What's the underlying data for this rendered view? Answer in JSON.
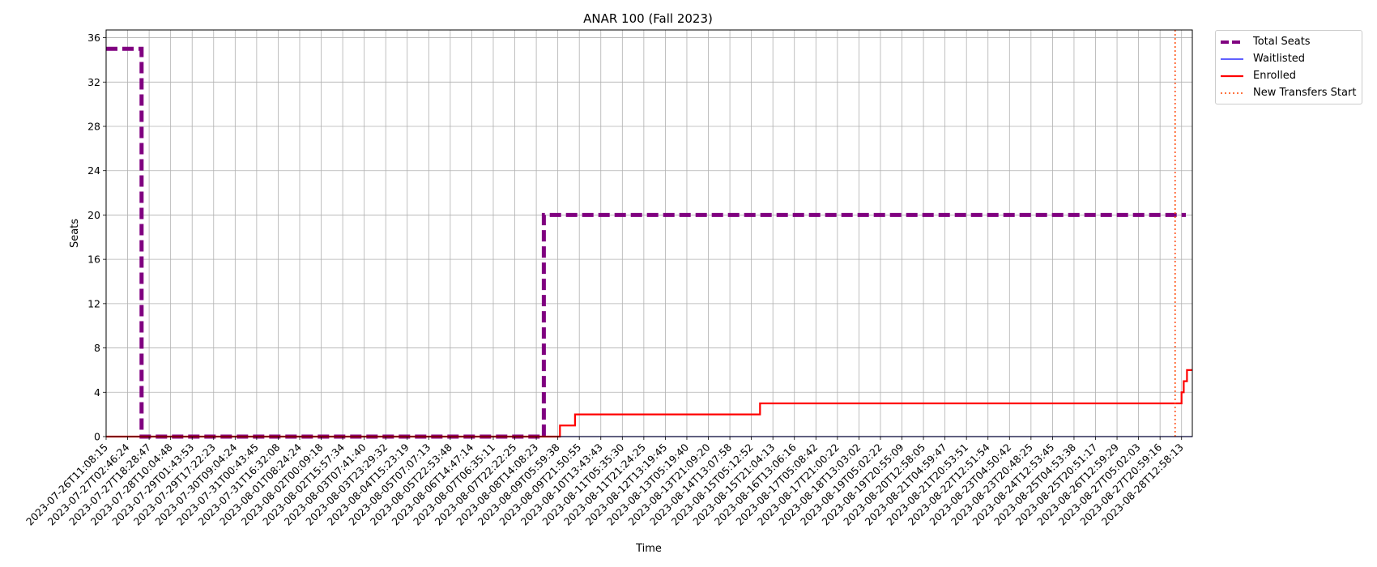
{
  "chart_data": {
    "type": "line",
    "title": "ANAR 100 (Fall 2023)",
    "xlabel": "Time",
    "ylabel": "Seats",
    "ylim": [
      0,
      36.7
    ],
    "yticks": [
      0,
      4,
      8,
      12,
      16,
      20,
      24,
      28,
      32,
      36
    ],
    "grid": true,
    "legend_placement": "outside upper right",
    "x_tick_labels": [
      "2023-07-26T11:08:15",
      "2023-07-27T02:46:24",
      "2023-07-27T18:28:47",
      "2023-07-28T10:04:48",
      "2023-07-29T01:43:53",
      "2023-07-29T17:22:23",
      "2023-07-30T09:04:24",
      "2023-07-31T00:43:45",
      "2023-07-31T16:32:08",
      "2023-08-01T08:24:24",
      "2023-08-02T00:09:18",
      "2023-08-02T15:57:34",
      "2023-08-03T07:41:40",
      "2023-08-03T23:29:32",
      "2023-08-04T15:23:19",
      "2023-08-05T07:07:13",
      "2023-08-05T22:53:48",
      "2023-08-06T14:47:14",
      "2023-08-07T06:35:11",
      "2023-08-07T22:22:25",
      "2023-08-08T14:08:23",
      "2023-08-09T05:59:38",
      "2023-08-09T21:50:55",
      "2023-08-10T13:43:43",
      "2023-08-11T05:35:30",
      "2023-08-11T21:24:25",
      "2023-08-12T13:19:45",
      "2023-08-13T05:19:40",
      "2023-08-13T21:09:20",
      "2023-08-14T13:07:58",
      "2023-08-15T05:12:52",
      "2023-08-15T21:04:13",
      "2023-08-16T13:06:16",
      "2023-08-17T05:08:42",
      "2023-08-17T21:00:22",
      "2023-08-18T13:03:02",
      "2023-08-19T05:02:22",
      "2023-08-19T20:55:09",
      "2023-08-20T12:58:05",
      "2023-08-21T04:59:47",
      "2023-08-21T20:53:51",
      "2023-08-22T12:51:54",
      "2023-08-23T04:50:42",
      "2023-08-23T20:48:25",
      "2023-08-24T12:53:45",
      "2023-08-25T04:53:38",
      "2023-08-25T20:51:17",
      "2023-08-26T12:59:29",
      "2023-08-27T05:02:03",
      "2023-08-27T20:59:16",
      "2023-08-28T12:58:13"
    ],
    "x_range_index": [
      0,
      50.5
    ],
    "series": [
      {
        "name": "Total Seats",
        "color": "#800080",
        "style": "dashed",
        "points": [
          [
            0,
            35
          ],
          [
            1.65,
            35
          ],
          [
            1.65,
            0
          ],
          [
            20.35,
            0
          ],
          [
            20.35,
            20
          ],
          [
            50.2,
            20
          ]
        ]
      },
      {
        "name": "Waitlisted",
        "color": "#0000ff",
        "style": "solid",
        "points": [
          [
            0,
            0
          ],
          [
            50.5,
            0
          ]
        ]
      },
      {
        "name": "Enrolled",
        "color": "#ff0000",
        "style": "solid",
        "points": [
          [
            0,
            0
          ],
          [
            21.1,
            0
          ],
          [
            21.1,
            1
          ],
          [
            21.8,
            1
          ],
          [
            21.8,
            2
          ],
          [
            30.4,
            2
          ],
          [
            30.4,
            3
          ],
          [
            50.0,
            3
          ],
          [
            50.0,
            4
          ],
          [
            50.1,
            4
          ],
          [
            50.1,
            5
          ],
          [
            50.25,
            5
          ],
          [
            50.25,
            6
          ],
          [
            50.5,
            6
          ]
        ]
      },
      {
        "name": "New Transfers Start",
        "color": "#ff4500",
        "style": "dotted",
        "x_index": 49.7
      }
    ]
  }
}
